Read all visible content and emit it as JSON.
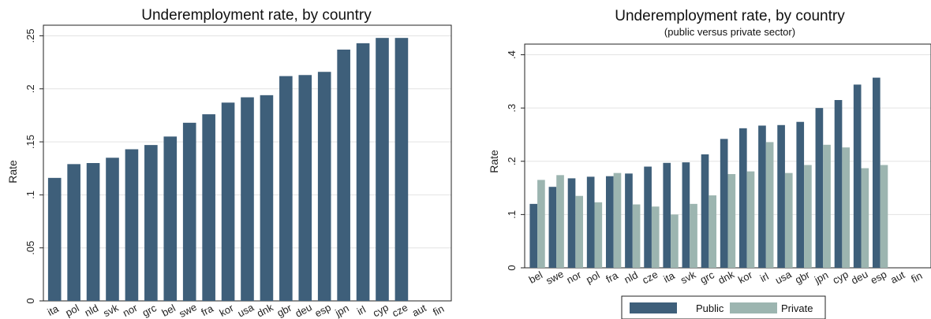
{
  "chart_data": [
    {
      "type": "bar",
      "title": "Underemployment rate, by country",
      "subtitle": "",
      "xlabel": "",
      "ylabel": "Rate",
      "ylim": [
        0,
        0.26
      ],
      "yticks": [
        0,
        0.05,
        0.1,
        0.15,
        0.2,
        0.25
      ],
      "ytick_labels": [
        "0",
        ".05",
        ".1",
        ".15",
        ".2",
        ".25"
      ],
      "grid": true,
      "categories": [
        "ita",
        "pol",
        "nld",
        "svk",
        "nor",
        "grc",
        "bel",
        "swe",
        "fra",
        "kor",
        "usa",
        "dnk",
        "gbr",
        "deu",
        "esp",
        "jpn",
        "irl",
        "cyp",
        "cze",
        "aut",
        "fin"
      ],
      "values": [
        0.116,
        0.129,
        0.13,
        0.135,
        0.143,
        0.147,
        0.155,
        0.168,
        0.176,
        0.187,
        0.192,
        0.194,
        0.212,
        0.213,
        0.216,
        0.237,
        0.243,
        0.248,
        0.248,
        null,
        null
      ],
      "colors": [
        "#3e5f7a"
      ]
    },
    {
      "type": "bar",
      "title": "Underemployment rate, by country",
      "subtitle": "(public versus private sector)",
      "xlabel": "",
      "ylabel": "Rate",
      "ylim": [
        0,
        0.42
      ],
      "yticks": [
        0,
        0.1,
        0.2,
        0.3,
        0.4
      ],
      "ytick_labels": [
        "0",
        ".1",
        ".2",
        ".3",
        ".4"
      ],
      "grid": true,
      "legend_position": "bottom",
      "categories": [
        "bel",
        "swe",
        "nor",
        "pol",
        "fra",
        "nld",
        "cze",
        "ita",
        "svk",
        "grc",
        "dnk",
        "kor",
        "irl",
        "usa",
        "gbr",
        "jpn",
        "cyp",
        "deu",
        "esp",
        "aut",
        "fin"
      ],
      "series": [
        {
          "name": "Public",
          "color": "#3e5f7a",
          "values": [
            0.12,
            0.152,
            0.168,
            0.171,
            0.172,
            0.177,
            0.19,
            0.197,
            0.198,
            0.213,
            0.242,
            0.262,
            0.267,
            0.268,
            0.274,
            0.3,
            0.315,
            0.344,
            0.357,
            null,
            null
          ]
        },
        {
          "name": "Private",
          "color": "#9cb5b0",
          "values": [
            0.165,
            0.174,
            0.135,
            0.123,
            0.178,
            0.119,
            0.115,
            0.1,
            0.12,
            0.136,
            0.176,
            0.181,
            0.236,
            0.178,
            0.193,
            0.231,
            0.226,
            0.187,
            0.193,
            null,
            null
          ]
        }
      ]
    }
  ]
}
